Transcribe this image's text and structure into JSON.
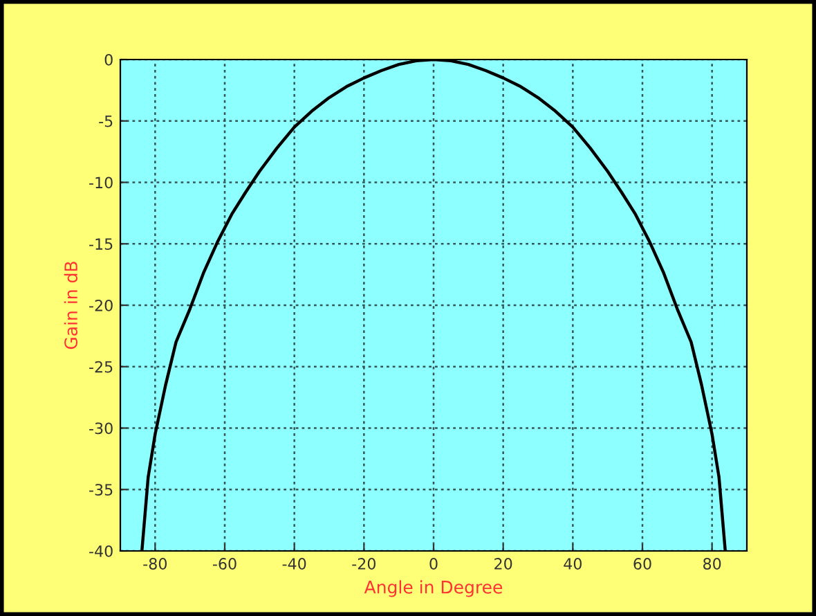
{
  "chart_data": {
    "type": "line",
    "xlabel": "Angle in Degree",
    "ylabel": "Gain in dB",
    "x": [
      -83.8,
      -82,
      -80,
      -77,
      -74,
      -70,
      -66,
      -62,
      -58,
      -54,
      -50,
      -45,
      -40,
      -35,
      -30,
      -25,
      -20,
      -15,
      -10,
      -5,
      0,
      5,
      10,
      15,
      20,
      25,
      30,
      35,
      40,
      45,
      50,
      54,
      58,
      62,
      66,
      70,
      74,
      77,
      80,
      82,
      83.8
    ],
    "series": [
      {
        "color": "#000000",
        "values": [
          -40,
          -34,
          -30.5,
          -26.5,
          -23,
          -20.3,
          -17.3,
          -14.8,
          -12.6,
          -10.8,
          -9.1,
          -7.2,
          -5.5,
          -4.2,
          -3.1,
          -2.2,
          -1.5,
          -0.9,
          -0.4,
          -0.1,
          0,
          -0.1,
          -0.4,
          -0.9,
          -1.5,
          -2.2,
          -3.1,
          -4.2,
          -5.5,
          -7.2,
          -9.1,
          -10.8,
          -12.6,
          -14.8,
          -17.3,
          -20.3,
          -23,
          -26.5,
          -30.5,
          -34,
          -40
        ]
      }
    ],
    "xlim": [
      -90,
      90
    ],
    "ylim": [
      -40,
      0
    ],
    "xticks": [
      -80,
      -60,
      -40,
      -20,
      0,
      20,
      40,
      60,
      80
    ],
    "yticks": [
      -40,
      -35,
      -30,
      -25,
      -20,
      -15,
      -10,
      -5,
      0
    ],
    "grid": true,
    "line_style": "solid",
    "marker": "none",
    "legend": false
  }
}
